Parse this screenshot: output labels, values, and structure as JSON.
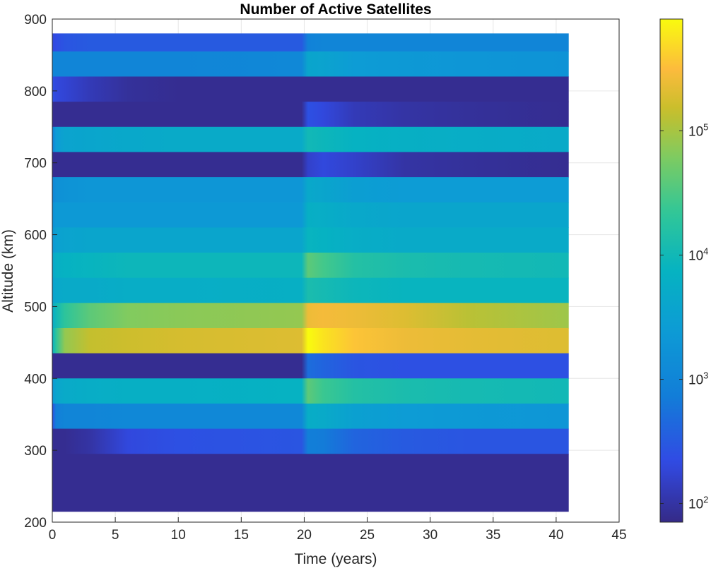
{
  "chart_data": {
    "type": "heatmap",
    "title": "Number of Active Satellites",
    "xlabel": "Time (years)",
    "ylabel": "Altitude (km)",
    "xlim": [
      0,
      45
    ],
    "ylim": [
      200,
      900
    ],
    "xticks": [
      "0",
      "5",
      "10",
      "15",
      "20",
      "25",
      "30",
      "35",
      "40",
      "45"
    ],
    "yticks": [
      "200",
      "300",
      "400",
      "500",
      "600",
      "700",
      "800",
      "900"
    ],
    "grid": true,
    "x_extent": [
      0,
      41
    ],
    "colorbar": {
      "scale": "log",
      "colormap": "parula",
      "min_exponent": 1.85,
      "max_exponent": 5.9,
      "tick_exponents": [
        2,
        3,
        4,
        5
      ],
      "tick_base": "10",
      "tick_powers": [
        "2",
        "3",
        "4",
        "5"
      ]
    },
    "time_keys": [
      0,
      0.3,
      1,
      3,
      6,
      10,
      19.8,
      20.3,
      21.5,
      24,
      28,
      33,
      41
    ],
    "bands": [
      {
        "alt": [
          855,
          880
        ],
        "log10": [
          2.3,
          2.35,
          2.45,
          2.5,
          2.5,
          2.5,
          2.5,
          2.95,
          3.0,
          3.0,
          3.0,
          3.0,
          3.0
        ]
      },
      {
        "alt": [
          820,
          855
        ],
        "log10": [
          3.0,
          3.0,
          3.0,
          3.0,
          3.0,
          3.0,
          3.05,
          3.6,
          3.55,
          3.4,
          3.35,
          3.3,
          3.25
        ]
      },
      {
        "alt": [
          785,
          820
        ],
        "log10": [
          2.4,
          2.3,
          2.25,
          2.1,
          1.95,
          1.9,
          1.9,
          1.9,
          1.9,
          1.9,
          1.9,
          1.9,
          1.9
        ]
      },
      {
        "alt": [
          750,
          785
        ],
        "log10": [
          1.9,
          1.9,
          1.9,
          1.9,
          1.9,
          1.9,
          1.9,
          2.4,
          2.3,
          2.1,
          2.0,
          1.95,
          1.9
        ]
      },
      {
        "alt": [
          715,
          750
        ],
        "log10": [
          2.9,
          3.4,
          3.55,
          3.6,
          3.65,
          3.7,
          3.7,
          4.0,
          3.95,
          3.85,
          3.8,
          3.75,
          3.7
        ]
      },
      {
        "alt": [
          680,
          715
        ],
        "log10": [
          1.9,
          1.9,
          1.9,
          1.9,
          1.9,
          1.9,
          1.9,
          2.2,
          2.3,
          2.2,
          2.0,
          1.95,
          1.9
        ]
      },
      {
        "alt": [
          645,
          680
        ],
        "log10": [
          3.0,
          3.2,
          3.25,
          3.3,
          3.3,
          3.3,
          3.3,
          3.65,
          3.6,
          3.45,
          3.4,
          3.4,
          3.4
        ]
      },
      {
        "alt": [
          610,
          645
        ],
        "log10": [
          3.2,
          3.35,
          3.35,
          3.35,
          3.35,
          3.35,
          3.35,
          3.8,
          3.75,
          3.65,
          3.6,
          3.6,
          3.6
        ]
      },
      {
        "alt": [
          575,
          610
        ],
        "log10": [
          3.3,
          3.5,
          3.55,
          3.6,
          3.6,
          3.6,
          3.6,
          3.9,
          3.85,
          3.75,
          3.7,
          3.7,
          3.7
        ]
      },
      {
        "alt": [
          540,
          575
        ],
        "log10": [
          3.6,
          3.8,
          3.85,
          3.9,
          3.95,
          3.95,
          3.95,
          4.6,
          4.45,
          4.2,
          4.1,
          4.05,
          4.0
        ]
      },
      {
        "alt": [
          505,
          540
        ],
        "log10": [
          3.5,
          3.65,
          3.7,
          3.7,
          3.75,
          3.75,
          3.8,
          4.1,
          4.05,
          3.95,
          3.9,
          3.9,
          3.9
        ]
      },
      {
        "alt": [
          470,
          505
        ],
        "log10": [
          3.7,
          4.0,
          4.3,
          4.6,
          4.8,
          4.85,
          4.9,
          5.4,
          5.45,
          5.4,
          5.3,
          5.1,
          4.95
        ]
      },
      {
        "alt": [
          435,
          470
        ],
        "log10": [
          3.8,
          4.3,
          4.9,
          5.15,
          5.2,
          5.25,
          5.3,
          5.9,
          5.75,
          5.55,
          5.4,
          5.35,
          5.3
        ]
      },
      {
        "alt": [
          400,
          435
        ],
        "log10": [
          1.9,
          1.9,
          1.9,
          1.9,
          1.9,
          1.9,
          1.9,
          2.7,
          2.6,
          2.45,
          2.4,
          2.4,
          2.4
        ]
      },
      {
        "alt": [
          365,
          400
        ],
        "log10": [
          3.3,
          3.6,
          3.7,
          3.75,
          3.8,
          3.8,
          3.85,
          4.6,
          4.4,
          4.2,
          4.1,
          4.05,
          4.0
        ]
      },
      {
        "alt": [
          330,
          365
        ],
        "log10": [
          2.4,
          2.9,
          3.0,
          3.0,
          3.05,
          3.05,
          3.05,
          3.75,
          3.7,
          3.5,
          3.4,
          3.35,
          3.3
        ]
      },
      {
        "alt": [
          295,
          330
        ],
        "log10": [
          1.9,
          1.9,
          1.9,
          2.0,
          2.3,
          2.4,
          2.45,
          2.9,
          2.85,
          2.6,
          2.5,
          2.45,
          2.45
        ]
      },
      {
        "alt": [
          215,
          295
        ],
        "log10": [
          1.9,
          1.9,
          1.9,
          1.9,
          1.9,
          1.9,
          1.9,
          1.9,
          1.9,
          1.9,
          1.9,
          1.9,
          1.9
        ]
      }
    ]
  }
}
